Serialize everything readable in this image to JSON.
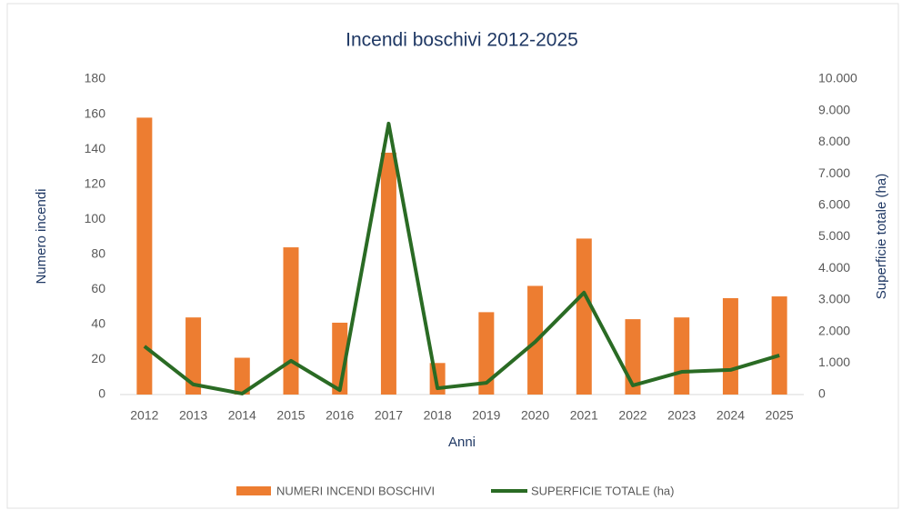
{
  "chart_data": {
    "type": "bar_line",
    "title": "Incendi boschivi 2012-2025",
    "x_label": "Anni",
    "y_label": "Numero incendi",
    "y2_label": "Superficie totale (ha)",
    "categories": [
      "2012",
      "2013",
      "2014",
      "2015",
      "2016",
      "2017",
      "2018",
      "2019",
      "2020",
      "2021",
      "2022",
      "2023",
      "2024",
      "2025"
    ],
    "series": [
      {
        "name": "NUMERI INCENDI BOSCHIVI",
        "type": "bar",
        "color": "#ed7d31",
        "values": [
          158,
          44,
          21,
          84,
          41,
          138,
          18,
          47,
          62,
          89,
          43,
          44,
          55,
          56
        ]
      },
      {
        "name": "SUPERFICIE TOTALE (ha)",
        "type": "line",
        "axis": "y2",
        "color": "#2a6b24",
        "values": [
          1530,
          320,
          30,
          1070,
          140,
          8590,
          200,
          370,
          1670,
          3230,
          290,
          720,
          780,
          1240
        ]
      }
    ],
    "ylim": [
      0,
      180
    ],
    "yticks": [
      0,
      20,
      40,
      60,
      80,
      100,
      120,
      140,
      160,
      180
    ],
    "y2lim": [
      0,
      10000
    ],
    "y2ticks": [
      0,
      {
        "value": 1000,
        "label": "1.000"
      },
      {
        "value": 2000,
        "label": "2.000"
      },
      {
        "value": 3000,
        "label": "3.000"
      },
      {
        "value": 4000,
        "label": "4.000"
      },
      {
        "value": 5000,
        "label": "5.000"
      },
      {
        "value": 6000,
        "label": "6.000"
      },
      {
        "value": 7000,
        "label": "7.000"
      },
      {
        "value": 8000,
        "label": "8.000"
      },
      {
        "value": 9000,
        "label": "9.000"
      },
      {
        "value": 10000,
        "label": "10.000"
      }
    ],
    "legend": "bottom"
  }
}
